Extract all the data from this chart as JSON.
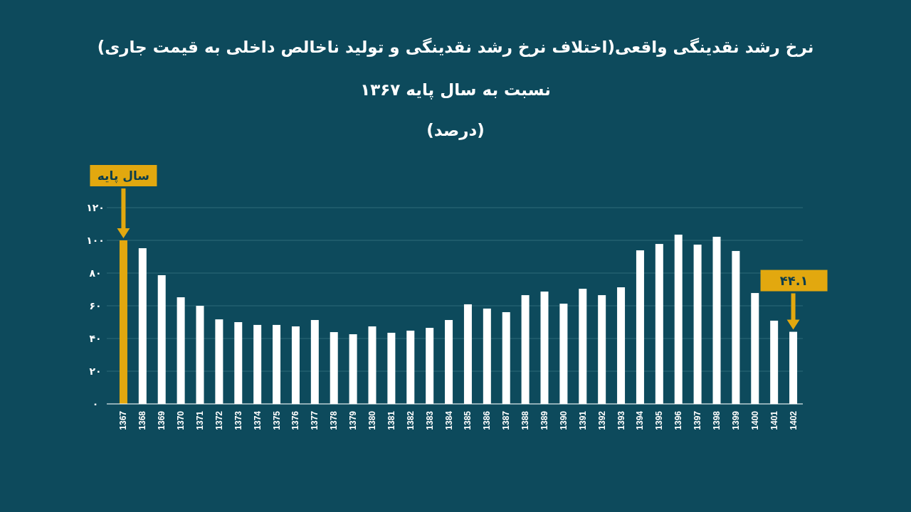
{
  "chart_data": {
    "type": "bar",
    "title": "نرخ رشد نقدینگی واقعی(اختلاف نرخ رشد نقدینگی و تولید ناخالص داخلی به قیمت جاری)",
    "subtitle": "نسبت به سال پایه ۱۳۶۷",
    "annotations": [
      "(درصد)",
      "سال پایه",
      "۴۴.۱"
    ],
    "categories": [
      "1367",
      "1368",
      "1369",
      "1370",
      "1371",
      "1372",
      "1373",
      "1374",
      "1375",
      "1376",
      "1377",
      "1378",
      "1379",
      "1380",
      "1381",
      "1382",
      "1383",
      "1384",
      "1385",
      "1386",
      "1387",
      "1388",
      "1389",
      "1390",
      "1391",
      "1392",
      "1393",
      "1394",
      "1395",
      "1396",
      "1397",
      "1398",
      "1399",
      "1400",
      "1401",
      "1402"
    ],
    "values": [
      100,
      95.2,
      78.7,
      65.2,
      60,
      51.7,
      50,
      48.3,
      48.3,
      47.4,
      51.3,
      43.9,
      42.6,
      47.4,
      43.5,
      44.8,
      46.5,
      51.3,
      60.9,
      58.3,
      56.1,
      66.5,
      68.7,
      61.3,
      70.4,
      66.5,
      71.3,
      93.9,
      97.8,
      103.5,
      97.4,
      102.2,
      93.5,
      67.8,
      50.9,
      44.1
    ],
    "colors": [
      "#e2a80f",
      "#ffffff",
      "#ffffff",
      "#ffffff",
      "#ffffff",
      "#ffffff",
      "#ffffff",
      "#ffffff",
      "#ffffff",
      "#ffffff",
      "#ffffff",
      "#ffffff",
      "#ffffff",
      "#ffffff",
      "#ffffff",
      "#ffffff",
      "#ffffff",
      "#ffffff",
      "#ffffff",
      "#ffffff",
      "#ffffff",
      "#ffffff",
      "#ffffff",
      "#ffffff",
      "#ffffff",
      "#ffffff",
      "#ffffff",
      "#ffffff",
      "#ffffff",
      "#ffffff",
      "#ffffff",
      "#ffffff",
      "#ffffff",
      "#ffffff",
      "#ffffff",
      "#ffffff"
    ],
    "ylim": [
      0,
      120
    ],
    "yticks": [
      {
        "value": 0,
        "label": "۰"
      },
      {
        "value": 20,
        "label": "۲۰"
      },
      {
        "value": 40,
        "label": "۴۰"
      },
      {
        "value": 60,
        "label": "۶۰"
      },
      {
        "value": 80,
        "label": "۸۰"
      },
      {
        "value": 100,
        "label": "۱۰۰"
      },
      {
        "value": 120,
        "label": "۱۲۰"
      }
    ],
    "grid": "y",
    "legend": false
  }
}
